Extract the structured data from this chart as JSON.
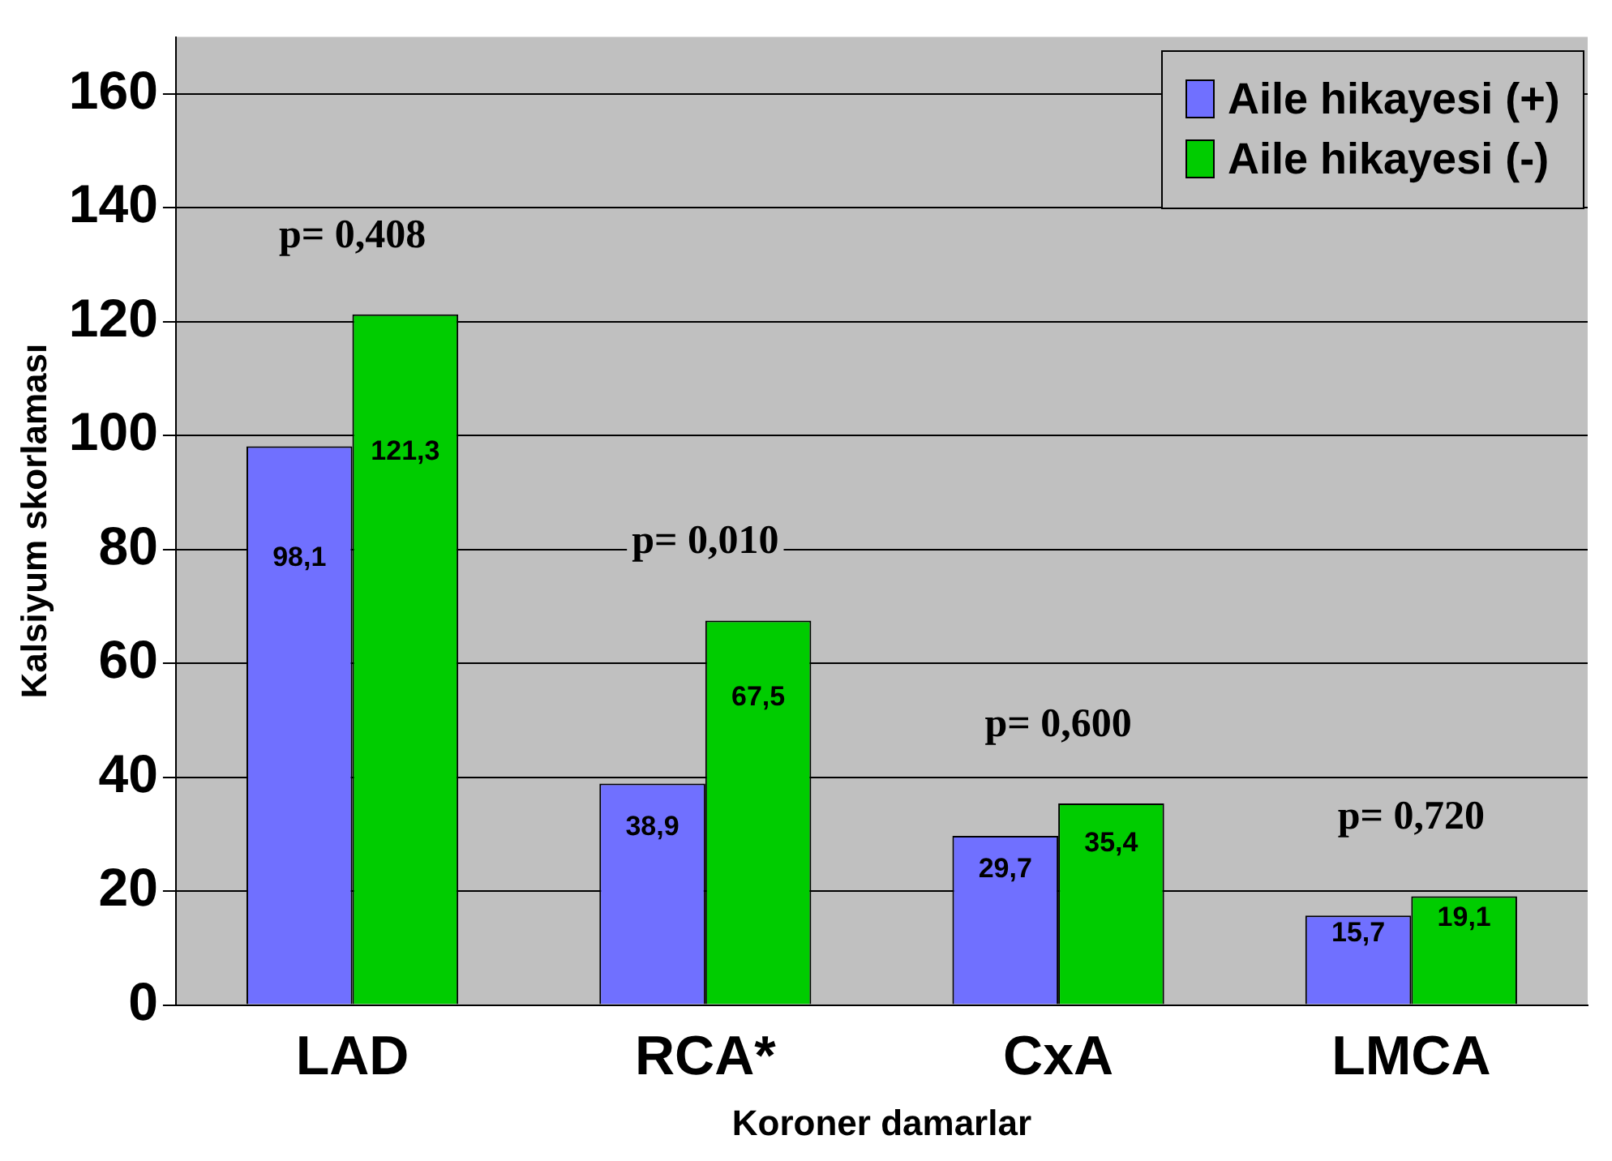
{
  "chart_data": {
    "type": "bar",
    "xlabel": "Koroner damarlar",
    "ylabel": "Kalsiyum skorlaması",
    "categories": [
      "LAD",
      "RCA*",
      "CxA",
      "LMCA"
    ],
    "series": [
      {
        "name": "Aile hikayesi (+)",
        "color": "#7070ff",
        "values": [
          98.1,
          38.9,
          29.7,
          15.7
        ],
        "value_labels": [
          "98,1",
          "38,9",
          "29,7",
          "15,7"
        ]
      },
      {
        "name": "Aile hikayesi (-)",
        "color": "#00cc00",
        "values": [
          121.3,
          67.5,
          35.4,
          19.1
        ],
        "value_labels": [
          "121,3",
          "67,5",
          "35,4",
          "19,1"
        ]
      }
    ],
    "ylim": [
      0,
      170
    ],
    "yticks": [
      0,
      20,
      40,
      60,
      80,
      100,
      120,
      140,
      160
    ],
    "grid": "y",
    "legend": "top right",
    "annotations": [
      "p= 0,408",
      "p= 0,010",
      "p= 0,600",
      "p= 0,720"
    ]
  }
}
